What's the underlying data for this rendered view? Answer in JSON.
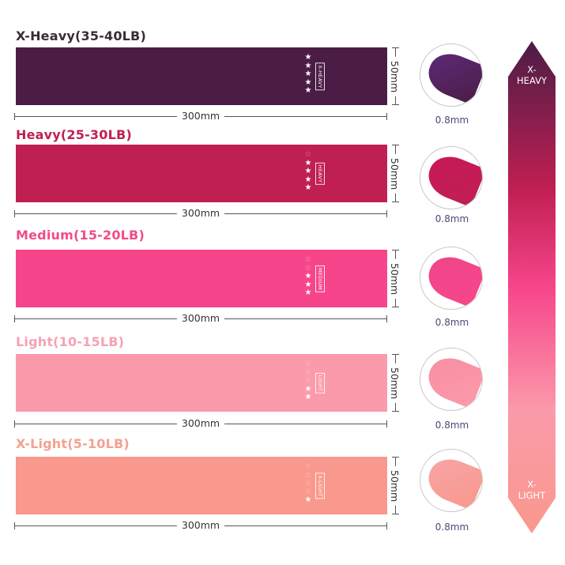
{
  "bands": [
    {
      "title": "X-Heavy(35-40LB)",
      "title_color": "#3b2b3b",
      "color": "#4b1d46",
      "loop_color": "#5e2a7a",
      "tag": "X-HEAVY",
      "stars_filled": 5,
      "stars_total": 5,
      "length": "300mm",
      "width": "50mm",
      "thickness": "0.8mm"
    },
    {
      "title": "Heavy(25-30LB)",
      "title_color": "#c02050",
      "color": "#c01f52",
      "loop_color": "#c8185a",
      "tag": "HEAVY",
      "stars_filled": 4,
      "stars_total": 5,
      "length": "300mm",
      "width": "50mm",
      "thickness": "0.8mm"
    },
    {
      "title": "Medium(15-20LB)",
      "title_color": "#f04c8a",
      "color": "#f7458b",
      "loop_color": "#f0468a",
      "tag": "MEDIUM",
      "stars_filled": 3,
      "stars_total": 5,
      "length": "300mm",
      "width": "50mm",
      "thickness": "0.8mm"
    },
    {
      "title": "Light(10-15LB)",
      "title_color": "#f6a2b2",
      "color": "#fb9aaa",
      "loop_color": "#f78fa2",
      "tag": "LIGHT",
      "stars_filled": 2,
      "stars_total": 5,
      "length": "300mm",
      "width": "50mm",
      "thickness": "0.8mm"
    },
    {
      "title": "X-Light(5-10LB)",
      "title_color": "#f5a090",
      "color": "#f9988c",
      "loop_color": "#f8a5a8",
      "tag": "X-LIGHT",
      "stars_filled": 1,
      "stars_total": 5,
      "length": "300mm",
      "width": "50mm",
      "thickness": "0.8mm"
    }
  ],
  "scale_arrow": {
    "top_label_line1": "X-",
    "top_label_line2": "HEAVY",
    "bottom_label_line1": "X-",
    "bottom_label_line2": "LIGHT",
    "gradient": [
      "#4b1d46",
      "#c01f52",
      "#f7458b",
      "#fb9aaa",
      "#f9988c"
    ]
  }
}
